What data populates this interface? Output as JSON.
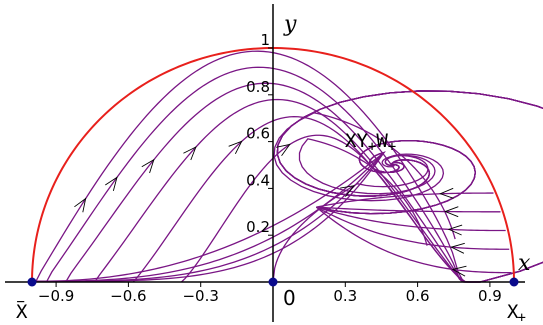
{
  "axes": {
    "x_name": "x",
    "y_name": "y",
    "origin_label": "0",
    "x_ticks": [
      {
        "value": -0.9,
        "label": "−0.9"
      },
      {
        "value": -0.6,
        "label": "−0.6"
      },
      {
        "value": -0.3,
        "label": "−0.3"
      },
      {
        "value": 0.3,
        "label": "0.3"
      },
      {
        "value": 0.6,
        "label": "0.6"
      },
      {
        "value": 0.9,
        "label": "0.9"
      }
    ],
    "y_ticks": [
      {
        "value": 0.2,
        "label": "0.2"
      },
      {
        "value": 0.4,
        "label": "0.4"
      },
      {
        "value": 0.6,
        "label": "0.6"
      },
      {
        "value": 0.8,
        "label": "0.8"
      },
      {
        "value": 1.0,
        "label": "1"
      }
    ]
  },
  "points": {
    "x_minus": {
      "base": "X",
      "sub": "−",
      "x": -1,
      "y": 0
    },
    "x_plus": {
      "base": "X",
      "sub": "+",
      "x": 1,
      "y": 0
    },
    "origin": {
      "x": 0,
      "y": 0
    },
    "interior": {
      "text": "XY",
      "sub1": "+",
      "text2": "W",
      "sub2": "+",
      "x": 0.5,
      "y": 0.5
    }
  },
  "colors": {
    "boundary": "#e8201c",
    "trajectory": "#7a1685",
    "point": "#0a0a8c",
    "axis": "#000000"
  }
}
